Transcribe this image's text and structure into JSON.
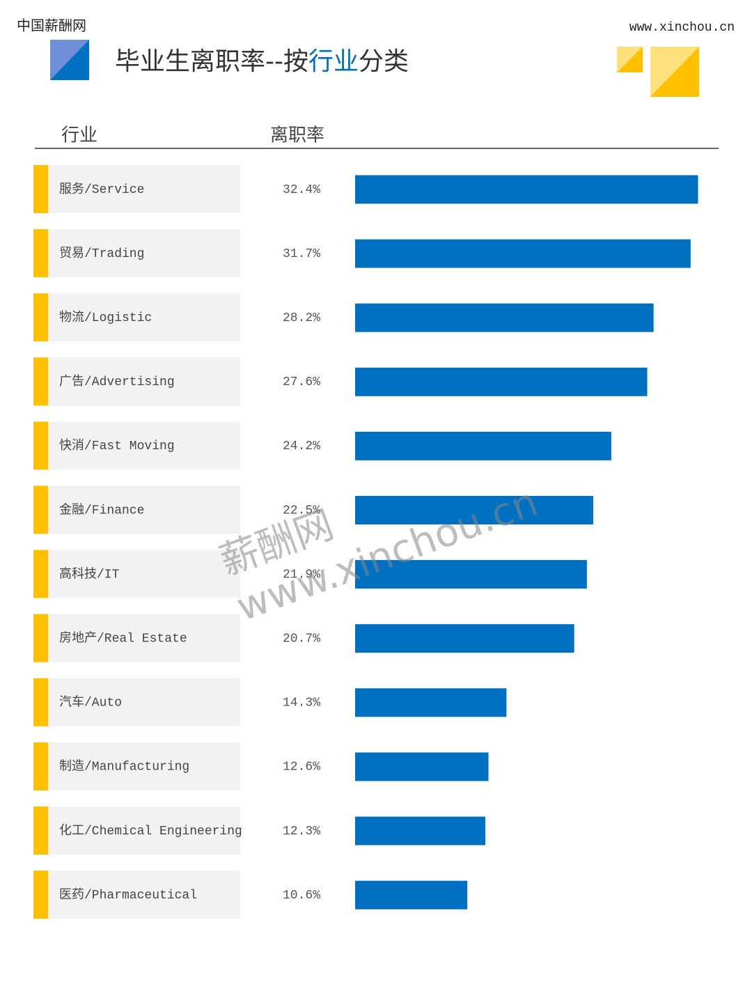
{
  "header": {
    "brand": "中国薪酬网",
    "site": "www.xinchou.cn"
  },
  "chart_data": {
    "type": "bar",
    "title_parts": [
      "毕业生离职率--按",
      "行业",
      "分类"
    ],
    "column_headers": [
      "行业",
      "离职率"
    ],
    "categories": [
      "服务/Service",
      "贸易/Trading",
      "物流/Logistic",
      "广告/Advertising",
      "快消/Fast Moving",
      "金融/Finance",
      "高科技/IT",
      "房地产/Real Estate",
      "汽车/Auto",
      "制造/Manufacturing",
      "化工/Chemical Engineering",
      "医药/Pharmaceutical"
    ],
    "values": [
      32.4,
      31.7,
      28.2,
      27.6,
      24.2,
      22.5,
      21.9,
      20.7,
      14.3,
      12.6,
      12.3,
      10.6
    ],
    "value_labels": [
      "32.4%",
      "31.7%",
      "28.2%",
      "27.6%",
      "24.2%",
      "22.5%",
      "21.9%",
      "20.7%",
      "14.3%",
      "12.6%",
      "12.3%",
      "10.6%"
    ],
    "color": "#0070c0"
  },
  "watermark": [
    "薪酬网",
    "www.xinchou.cn"
  ]
}
